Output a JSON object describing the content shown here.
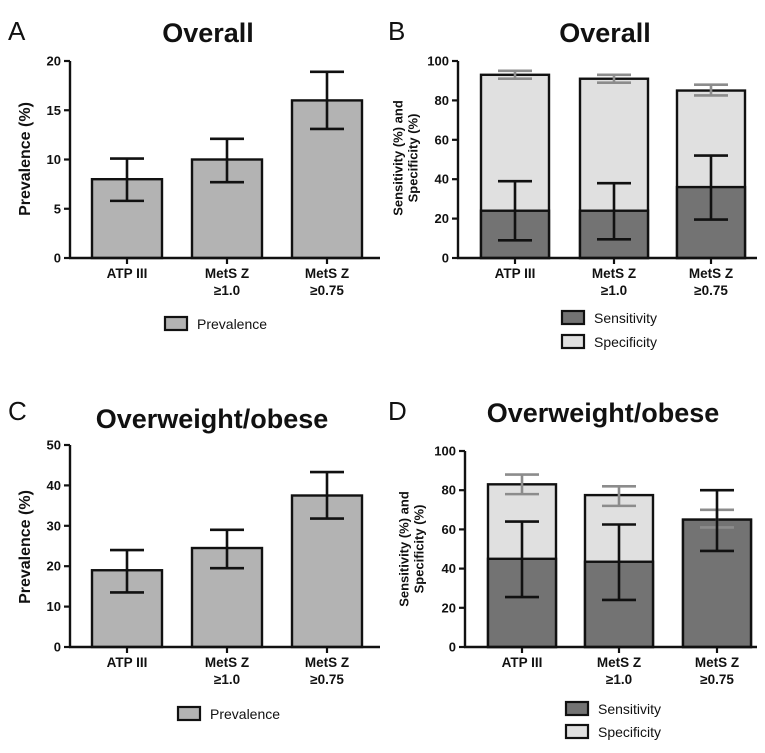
{
  "colors": {
    "prevalence": "#b3b3b3",
    "sensitivity": "#737373",
    "specificity": "#e0e0e0",
    "specificity_error": "#8c8c8c",
    "axis": "#111111"
  },
  "chart_data": [
    {
      "type": "bar",
      "panel": "A",
      "title": "Overall",
      "ylabel": "Prevalence (%)",
      "ylim": [
        0,
        20
      ],
      "yticks": [
        0,
        5,
        10,
        15,
        20
      ],
      "categories": [
        [
          "ATP III"
        ],
        [
          "MetS Z",
          "≥1.0"
        ],
        [
          "MetS Z",
          "≥0.75"
        ]
      ],
      "series": [
        {
          "name": "Prevalence",
          "values": [
            8,
            10,
            16
          ],
          "err_low": [
            5.8,
            7.7,
            13.1
          ],
          "err_high": [
            10.1,
            12.1,
            18.9
          ]
        }
      ],
      "legend": [
        "Prevalence"
      ]
    },
    {
      "type": "bar",
      "panel": "B",
      "title": "Overall",
      "ylabel": [
        "Sensitivity (%) and",
        "Specificity (%)"
      ],
      "ylim": [
        0,
        100
      ],
      "yticks": [
        0,
        20,
        40,
        60,
        80,
        100
      ],
      "categories": [
        [
          "ATP III"
        ],
        [
          "MetS Z",
          "≥1.0"
        ],
        [
          "MetS Z",
          "≥0.75"
        ]
      ],
      "series": [
        {
          "name": "Specificity",
          "values": [
            93,
            91,
            85
          ],
          "err_low": [
            91,
            89,
            82.5
          ],
          "err_high": [
            95,
            93,
            88
          ]
        },
        {
          "name": "Sensitivity",
          "values": [
            24,
            24,
            36
          ],
          "err_low": [
            9,
            9.5,
            19.5
          ],
          "err_high": [
            39,
            38,
            52
          ]
        }
      ],
      "legend": [
        "Sensitivity",
        "Specificity"
      ]
    },
    {
      "type": "bar",
      "panel": "C",
      "title": "Overweight/obese",
      "ylabel": "Prevalence (%)",
      "ylim": [
        0,
        50
      ],
      "yticks": [
        0,
        10,
        20,
        30,
        40,
        50
      ],
      "categories": [
        [
          "ATP III"
        ],
        [
          "MetS Z",
          "≥1.0"
        ],
        [
          "MetS Z",
          "≥0.75"
        ]
      ],
      "series": [
        {
          "name": "Prevalence",
          "values": [
            19,
            24.5,
            37.5
          ],
          "err_low": [
            13.5,
            19.5,
            31.8
          ],
          "err_high": [
            24,
            29,
            43.3
          ]
        }
      ],
      "legend": [
        "Prevalence"
      ]
    },
    {
      "type": "bar",
      "panel": "D",
      "title": "Overweight/obese",
      "ylabel": [
        "Sensitivity (%) and",
        "Specificity (%)"
      ],
      "ylim": [
        0,
        100
      ],
      "yticks": [
        0,
        20,
        40,
        60,
        80,
        100
      ],
      "categories": [
        [
          "ATP III"
        ],
        [
          "MetS Z",
          "≥1.0"
        ],
        [
          "MetS Z",
          "≥0.75"
        ]
      ],
      "series": [
        {
          "name": "Specificity",
          "values": [
            83,
            77.5,
            65
          ],
          "err_low": [
            78,
            72,
            61
          ],
          "err_high": [
            88,
            82,
            70
          ]
        },
        {
          "name": "Sensitivity",
          "values": [
            45,
            43.5,
            65
          ],
          "err_low": [
            25.5,
            24,
            49
          ],
          "err_high": [
            64,
            62.5,
            80
          ]
        }
      ],
      "legend": [
        "Sensitivity",
        "Specificity"
      ]
    }
  ]
}
